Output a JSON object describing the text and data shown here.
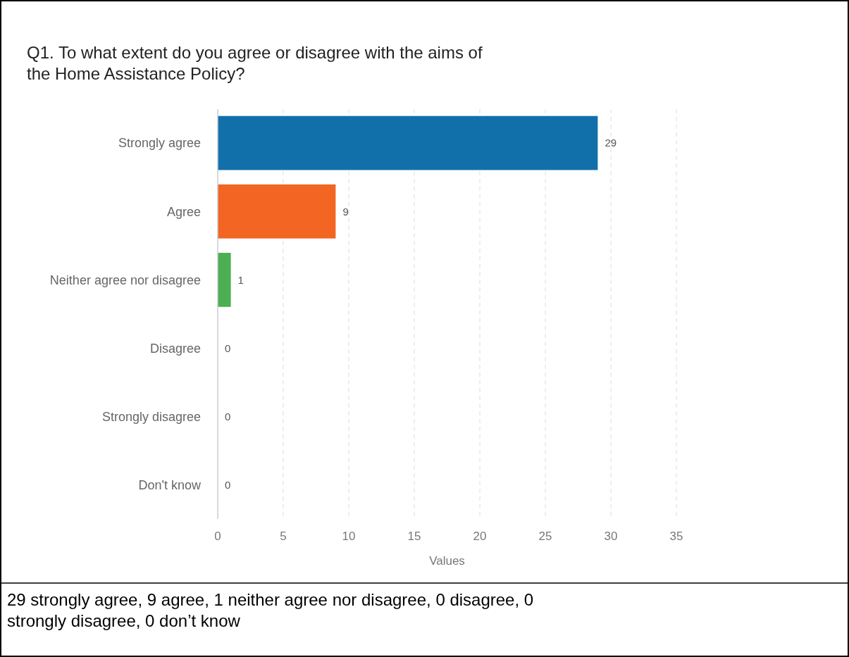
{
  "chart_data": {
    "type": "bar",
    "orientation": "horizontal",
    "title": "Q1. To what extent do you agree or disagree with the aims of the Home Assistance Policy?",
    "categories": [
      "Strongly agree",
      "Agree",
      "Neither agree nor disagree",
      "Disagree",
      "Strongly disagree",
      "Don't know"
    ],
    "values": [
      29,
      9,
      1,
      0,
      0,
      0
    ],
    "colors": [
      "#1170aa",
      "#f26522",
      "#4caf50",
      "#9467bd",
      "#8c564b",
      "#e377c2"
    ],
    "xlabel": "Values",
    "xlim": [
      0,
      35
    ],
    "xticks": [
      0,
      5,
      10,
      15,
      20,
      25,
      30,
      35
    ],
    "grid": "x",
    "data_labels": true,
    "annotations": [
      "29 strongly agree, 9 agree, 1 neither agree nor disagree, 0 disagree, 0 strongly disagree, 0 don’t know"
    ]
  }
}
